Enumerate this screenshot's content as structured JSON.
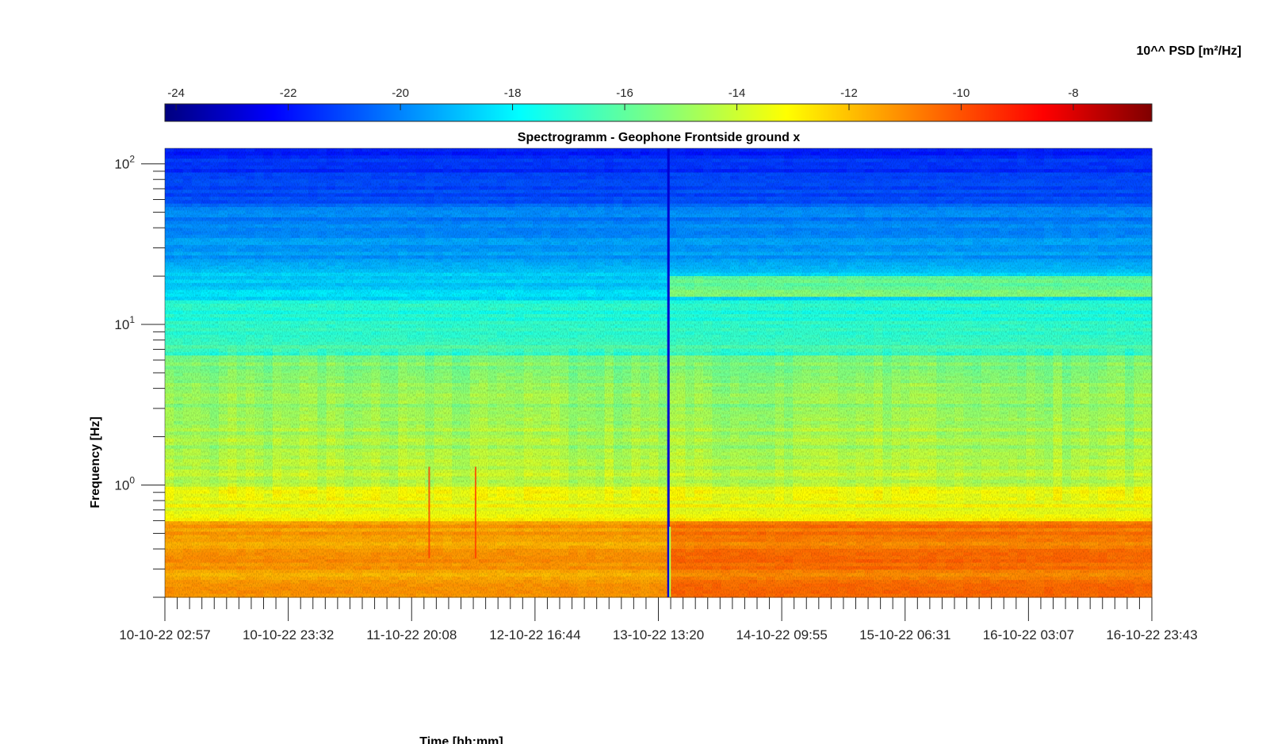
{
  "chart_data": {
    "type": "heatmap",
    "title": "Spectrogramm - Geophone Frontside ground x",
    "xlabel": "Time [hh:mm]",
    "ylabel": "Frequency [Hz]",
    "colorbar_label": "10^^ PSD [m²/Hz]",
    "colormap": "jet",
    "colorbar_ticks": [
      "-24",
      "-22",
      "-20",
      "-18",
      "-16",
      "-14",
      "-12",
      "-10",
      "-8"
    ],
    "colorbar_range": [
      -24.2,
      -6.6
    ],
    "x_ticks": [
      "10-10-22 02:57",
      "10-10-22 23:32",
      "11-10-22 20:08",
      "12-10-22 16:44",
      "13-10-22 13:20",
      "14-10-22 09:55",
      "15-10-22 06:31",
      "16-10-22 03:07",
      "16-10-22 23:43"
    ],
    "x_range": [
      "10-10-22 02:57",
      "16-10-22 23:43"
    ],
    "y_scale": "log",
    "y_ticks": [
      {
        "base": "10",
        "exp": "0",
        "value": 1
      },
      {
        "base": "10",
        "exp": "1",
        "value": 10
      },
      {
        "base": "10",
        "exp": "2",
        "value": 100
      }
    ],
    "y_range": [
      0.2,
      125
    ],
    "grid": false,
    "description": "Power spectral density (log10) over time; low frequencies (<0.6 Hz) near -12 to -11 (orange), 1-6 Hz near -14 (yellow-green), above 20 Hz near -18 to -20 (blue); a sensor change near 13-10-22 13:20 marked by a dark vertical line, after which the band near 17 Hz brightens."
  }
}
